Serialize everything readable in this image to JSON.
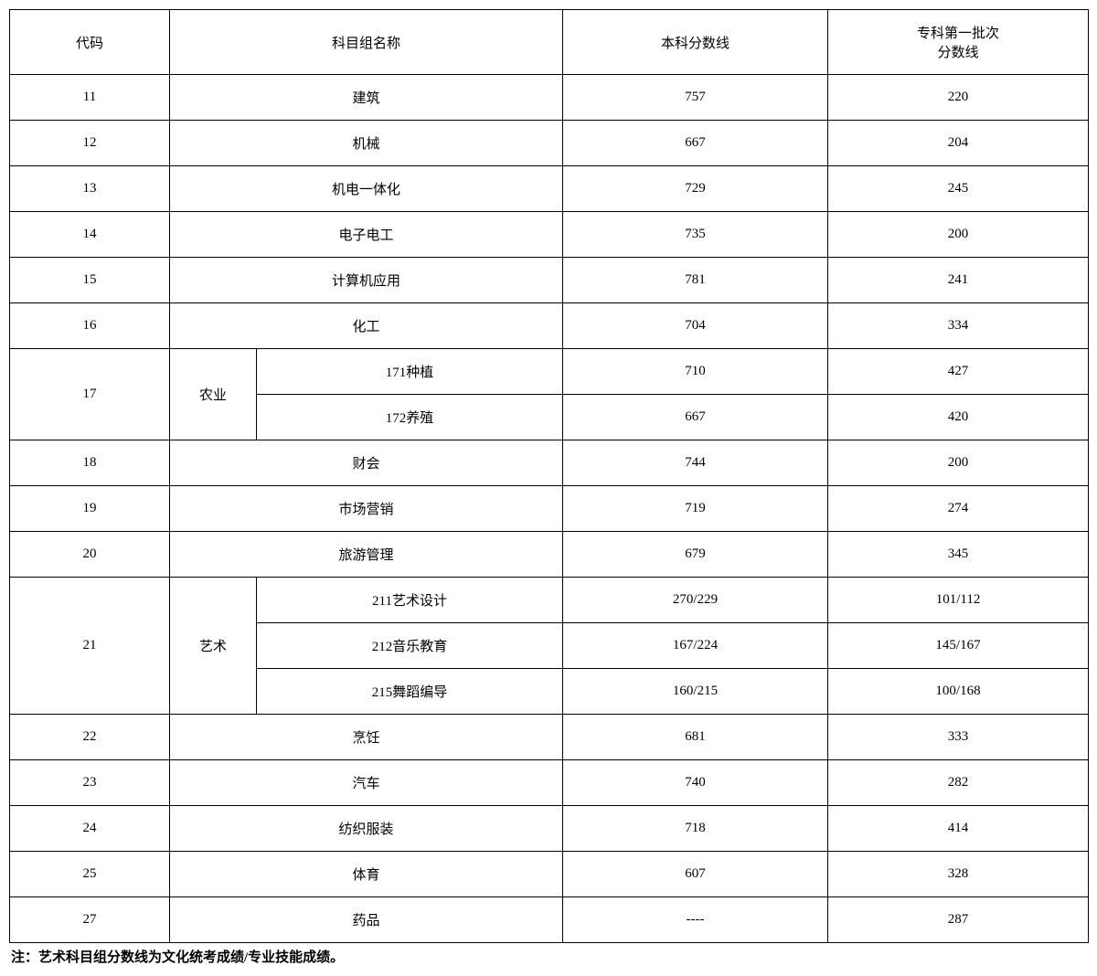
{
  "headers": {
    "code": "代码",
    "name": "科目组名称",
    "score1": "本科分数线",
    "score2_line1": "专科第一批次",
    "score2_line2": "分数线"
  },
  "rows": [
    {
      "code": "11",
      "name": "建筑",
      "score1": "757",
      "score2": "220"
    },
    {
      "code": "12",
      "name": "机械",
      "score1": "667",
      "score2": "204"
    },
    {
      "code": "13",
      "name": "机电一体化",
      "score1": "729",
      "score2": "245"
    },
    {
      "code": "14",
      "name": "电子电工",
      "score1": "735",
      "score2": "200"
    },
    {
      "code": "15",
      "name": "计算机应用",
      "score1": "781",
      "score2": "241"
    },
    {
      "code": "16",
      "name": "化工",
      "score1": "704",
      "score2": "334"
    }
  ],
  "group17": {
    "code": "17",
    "category": "农业",
    "sub": [
      {
        "name": "171种植",
        "score1": "710",
        "score2": "427"
      },
      {
        "name": "172养殖",
        "score1": "667",
        "score2": "420"
      }
    ]
  },
  "rows_mid": [
    {
      "code": "18",
      "name": "财会",
      "score1": "744",
      "score2": "200"
    },
    {
      "code": "19",
      "name": "市场营销",
      "score1": "719",
      "score2": "274"
    },
    {
      "code": "20",
      "name": "旅游管理",
      "score1": "679",
      "score2": "345"
    }
  ],
  "group21": {
    "code": "21",
    "category": "艺术",
    "sub": [
      {
        "name": "211艺术设计",
        "score1": "270/229",
        "score2": "101/112"
      },
      {
        "name": "212音乐教育",
        "score1": "167/224",
        "score2": "145/167"
      },
      {
        "name": "215舞蹈编导",
        "score1": "160/215",
        "score2": "100/168"
      }
    ]
  },
  "rows_end": [
    {
      "code": "22",
      "name": "烹饪",
      "score1": "681",
      "score2": "333"
    },
    {
      "code": "23",
      "name": "汽车",
      "score1": "740",
      "score2": "282"
    },
    {
      "code": "24",
      "name": "纺织服装",
      "score1": "718",
      "score2": "414"
    },
    {
      "code": "25",
      "name": "体育",
      "score1": "607",
      "score2": "328"
    },
    {
      "code": "27",
      "name": "药品",
      "score1": "----",
      "score2": "287"
    }
  ],
  "footnote": "注：艺术科目组分数线为文化统考成绩/专业技能成绩。"
}
